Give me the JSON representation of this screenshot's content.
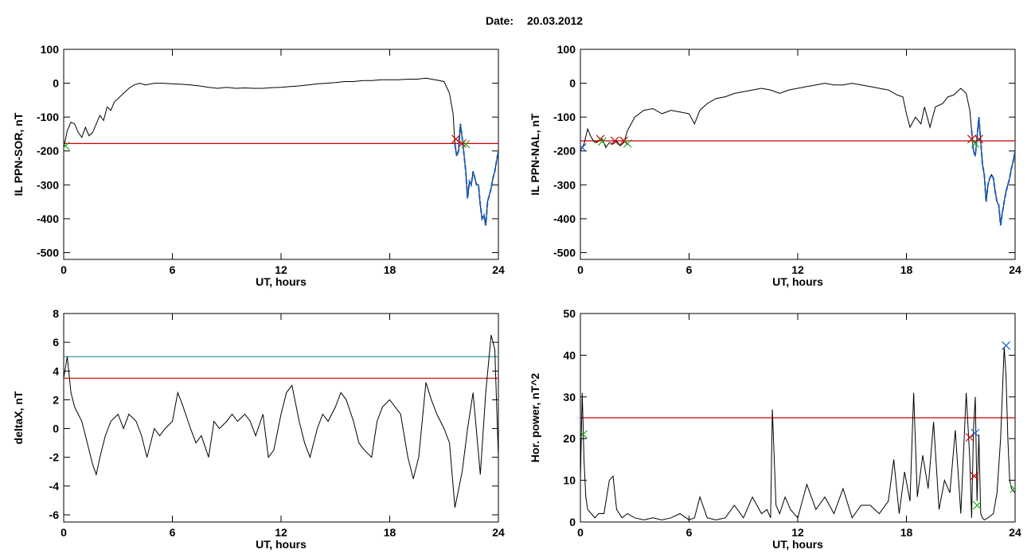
{
  "header": {
    "date_label": "Date:",
    "date_value": "20.03.2012"
  },
  "colors": {
    "signal": "#000000",
    "threshold_red": "#cc0000",
    "threshold_teal": "#1a8a9a",
    "disturbed_blue": "#1560c8",
    "marker_green": "#22aa22",
    "marker_blue": "#1560c8"
  },
  "chart_data": [
    {
      "type": "line",
      "ylabel": "IL PPN-SOR, nT",
      "xlabel": "UT, hours",
      "xlim": [
        0,
        24
      ],
      "ylim": [
        -520,
        100
      ],
      "xticks": [
        "0",
        "6",
        "12",
        "18",
        "24"
      ],
      "yticks": [
        "100",
        "0",
        "-100",
        "-200",
        "-300",
        "-400",
        "-500"
      ],
      "series": [
        {
          "x": [
            0,
            0.2,
            0.4,
            0.6,
            0.8,
            1.0,
            1.2,
            1.4,
            1.6,
            1.8,
            2.0,
            2.2,
            2.4,
            2.6,
            2.8,
            3.0,
            3.3,
            3.6,
            3.9,
            4.2,
            4.5,
            5.0,
            5.5,
            6.0,
            6.5,
            7.0,
            7.5,
            8.0,
            8.5,
            9.0,
            9.5,
            10.0,
            10.5,
            11.0,
            11.5,
            12.0,
            12.5,
            13.0,
            13.5,
            14.0,
            14.5,
            15.0,
            15.5,
            16.0,
            16.5,
            17.0,
            17.5,
            18.0,
            18.5,
            19.0,
            19.5,
            20.0,
            20.5,
            21.0,
            21.3,
            21.5,
            21.6,
            21.7,
            21.8,
            21.9,
            22.0,
            22.1,
            22.2,
            22.3,
            22.4,
            22.5,
            22.6,
            22.7,
            22.8,
            22.9,
            23.0,
            23.1,
            23.2,
            23.3,
            23.4,
            23.5,
            23.6,
            23.7,
            23.8,
            23.9,
            24.0
          ],
          "y": [
            -190,
            -140,
            -115,
            -120,
            -145,
            -160,
            -130,
            -155,
            -145,
            -120,
            -95,
            -110,
            -70,
            -80,
            -55,
            -45,
            -30,
            -15,
            -5,
            0,
            -5,
            0,
            0,
            -2,
            -3,
            -5,
            -8,
            -12,
            -15,
            -12,
            -15,
            -14,
            -15,
            -15,
            -13,
            -12,
            -10,
            -8,
            -5,
            -2,
            0,
            2,
            5,
            5,
            8,
            8,
            10,
            10,
            10,
            12,
            12,
            15,
            10,
            5,
            -30,
            -90,
            -180,
            -215,
            -200,
            -120,
            -160,
            -210,
            -260,
            -340,
            -290,
            -300,
            -260,
            -280,
            -300,
            -300,
            -360,
            -400,
            -390,
            -420,
            -350,
            -330,
            -310,
            -280,
            -260,
            -230,
            -200
          ]
        }
      ],
      "disturbed_from_x": 21.6,
      "thresholds": [
        {
          "y": -178,
          "color": "red"
        }
      ],
      "markers": [
        {
          "x": 21.65,
          "y": -165,
          "symbol": "x",
          "color": "red"
        },
        {
          "x": 22.0,
          "y": -178,
          "symbol": "x",
          "color": "red"
        },
        {
          "x": 22.2,
          "y": -180,
          "symbol": "x",
          "color": "green"
        },
        {
          "x": 0.1,
          "y": -185,
          "symbol": "x",
          "color": "green"
        }
      ]
    },
    {
      "type": "line",
      "ylabel": "IL PPN-NAL, nT",
      "xlabel": "UT, hours",
      "xlim": [
        0,
        24
      ],
      "ylim": [
        -520,
        100
      ],
      "xticks": [
        "0",
        "6",
        "12",
        "18",
        "24"
      ],
      "yticks": [
        "100",
        "0",
        "-100",
        "-200",
        "-300",
        "-400",
        "-500"
      ],
      "series": [
        {
          "x": [
            0,
            0.2,
            0.4,
            0.6,
            0.8,
            1.0,
            1.2,
            1.4,
            1.6,
            1.8,
            2.0,
            2.2,
            2.4,
            2.6,
            2.8,
            3.0,
            3.5,
            4.0,
            4.5,
            5.0,
            5.5,
            6.0,
            6.3,
            6.6,
            7.0,
            7.5,
            8.0,
            8.5,
            9.0,
            9.5,
            10.0,
            10.5,
            11.0,
            11.5,
            12.0,
            12.5,
            13.0,
            13.5,
            14.0,
            14.5,
            15.0,
            15.5,
            16.0,
            16.5,
            17.0,
            17.5,
            17.8,
            18.0,
            18.2,
            18.5,
            18.8,
            19.0,
            19.3,
            19.6,
            20.0,
            20.3,
            20.6,
            21.0,
            21.3,
            21.5,
            21.6,
            21.7,
            21.8,
            21.9,
            22.0,
            22.1,
            22.2,
            22.3,
            22.4,
            22.5,
            22.6,
            22.7,
            22.8,
            22.9,
            23.0,
            23.1,
            23.2,
            23.3,
            23.4,
            23.5,
            23.6,
            23.7,
            23.8,
            23.9,
            24.0
          ],
          "y": [
            -200,
            -180,
            -135,
            -160,
            -175,
            -170,
            -165,
            -190,
            -175,
            -180,
            -170,
            -185,
            -175,
            -140,
            -120,
            -100,
            -80,
            -75,
            -90,
            -80,
            -85,
            -90,
            -120,
            -80,
            -60,
            -45,
            -40,
            -30,
            -25,
            -20,
            -15,
            -20,
            -30,
            -20,
            -15,
            -10,
            -5,
            0,
            -5,
            -5,
            0,
            -5,
            -10,
            -15,
            -20,
            -35,
            -40,
            -90,
            -130,
            -100,
            -120,
            -70,
            -130,
            -70,
            -60,
            -40,
            -35,
            -15,
            -30,
            -80,
            -140,
            -200,
            -215,
            -160,
            -100,
            -170,
            -240,
            -270,
            -350,
            -300,
            -280,
            -270,
            -280,
            -320,
            -350,
            -360,
            -420,
            -380,
            -350,
            -320,
            -300,
            -280,
            -250,
            -230,
            -200
          ]
        }
      ],
      "disturbed_from_x": 21.6,
      "thresholds": [
        {
          "y": -170,
          "color": "red"
        }
      ],
      "markers": [
        {
          "x": 1.1,
          "y": -165,
          "symbol": "x",
          "color": "red"
        },
        {
          "x": 1.9,
          "y": -170,
          "symbol": "x",
          "color": "red"
        },
        {
          "x": 2.4,
          "y": -170,
          "symbol": "x",
          "color": "red"
        },
        {
          "x": 1.2,
          "y": -172,
          "symbol": "x",
          "color": "green"
        },
        {
          "x": 2.6,
          "y": -178,
          "symbol": "x",
          "color": "green"
        },
        {
          "x": 21.6,
          "y": -165,
          "symbol": "x",
          "color": "red"
        },
        {
          "x": 22.0,
          "y": -165,
          "symbol": "x",
          "color": "red"
        },
        {
          "x": 21.8,
          "y": -178,
          "symbol": "x",
          "color": "green"
        },
        {
          "x": 0.1,
          "y": -190,
          "symbol": "x",
          "color": "blue"
        }
      ]
    },
    {
      "type": "line",
      "ylabel": "deltaX, nT",
      "xlabel": "UT, hours",
      "xlim": [
        0,
        24
      ],
      "ylim": [
        -6.5,
        8
      ],
      "xticks": [
        "0",
        "6",
        "12",
        "18",
        "24"
      ],
      "yticks": [
        "8",
        "6",
        "4",
        "2",
        "0",
        "-2",
        "-4",
        "-6"
      ],
      "series": [
        {
          "x": [
            0,
            0.2,
            0.4,
            0.6,
            0.8,
            1.0,
            1.3,
            1.6,
            1.8,
            2.0,
            2.3,
            2.6,
            3.0,
            3.3,
            3.6,
            4.0,
            4.3,
            4.6,
            5.0,
            5.3,
            5.6,
            6.0,
            6.3,
            6.6,
            7.0,
            7.3,
            7.6,
            8.0,
            8.3,
            8.6,
            9.0,
            9.3,
            9.6,
            10.0,
            10.3,
            10.6,
            11.0,
            11.3,
            11.6,
            12.0,
            12.3,
            12.6,
            13.0,
            13.3,
            13.6,
            14.0,
            14.3,
            14.6,
            15.0,
            15.3,
            15.6,
            16.0,
            16.3,
            16.6,
            17.0,
            17.3,
            17.6,
            18.0,
            18.3,
            18.6,
            19.0,
            19.3,
            19.6,
            20.0,
            20.3,
            20.6,
            21.0,
            21.3,
            21.6,
            22.0,
            22.3,
            22.6,
            23.0,
            23.3,
            23.6,
            23.8,
            24.0
          ],
          "y": [
            3.5,
            5.0,
            2.5,
            1.5,
            1.0,
            0.5,
            -1.0,
            -2.5,
            -3.2,
            -2.0,
            -0.5,
            0.5,
            1.0,
            0.0,
            1.0,
            0.5,
            -0.5,
            -2.0,
            0.0,
            -0.5,
            0.0,
            0.5,
            2.5,
            1.5,
            0.0,
            -1.0,
            -0.5,
            -2.0,
            0.5,
            0.0,
            0.5,
            1.0,
            0.5,
            1.0,
            0.5,
            -0.5,
            1.0,
            -2.0,
            -1.5,
            1.0,
            2.5,
            3.0,
            0.5,
            -1.0,
            -2.0,
            0.0,
            1.0,
            0.5,
            1.5,
            2.5,
            2.0,
            0.5,
            -1.0,
            -1.5,
            -2.0,
            0.5,
            1.5,
            2.0,
            1.5,
            1.0,
            -2.0,
            -3.5,
            -2.0,
            3.2,
            2.0,
            1.0,
            0.0,
            -1.0,
            -5.5,
            -3.0,
            0.0,
            2.5,
            -3.2,
            2.5,
            6.5,
            5.5,
            -2.0
          ]
        }
      ],
      "thresholds": [
        {
          "y": 5.0,
          "color": "teal"
        },
        {
          "y": 3.5,
          "color": "red"
        }
      ],
      "markers": []
    },
    {
      "type": "line",
      "ylabel": "Hor. power, nT^2",
      "xlabel": "UT, hours",
      "xlim": [
        0,
        24
      ],
      "ylim": [
        0,
        50
      ],
      "xticks": [
        "0",
        "6",
        "12",
        "18",
        "24"
      ],
      "yticks": [
        "50",
        "40",
        "30",
        "20",
        "10",
        "0"
      ],
      "series": [
        {
          "x": [
            0,
            0.1,
            0.2,
            0.3,
            0.4,
            0.6,
            0.8,
            1.0,
            1.3,
            1.6,
            1.8,
            2.0,
            2.3,
            2.6,
            3.0,
            3.5,
            4.0,
            4.5,
            5.0,
            5.5,
            6.0,
            6.3,
            6.6,
            7.0,
            7.5,
            8.0,
            8.5,
            9.0,
            9.5,
            10.0,
            10.3,
            10.5,
            10.6,
            10.8,
            11.0,
            11.3,
            11.6,
            12.0,
            12.5,
            13.0,
            13.5,
            14.0,
            14.5,
            15.0,
            15.5,
            16.0,
            16.5,
            17.0,
            17.3,
            17.6,
            17.9,
            18.2,
            18.4,
            18.6,
            18.9,
            19.2,
            19.5,
            19.8,
            20.1,
            20.4,
            20.7,
            21.0,
            21.3,
            21.5,
            21.6,
            21.7,
            21.8,
            21.9,
            22.0,
            22.1,
            22.2,
            22.3,
            22.5,
            22.8,
            23.0,
            23.2,
            23.4,
            23.5,
            23.6,
            23.7,
            23.8,
            24.0
          ],
          "y": [
            10,
            31,
            15,
            6,
            3,
            2,
            1,
            2,
            2,
            10,
            11,
            3,
            1,
            2,
            1,
            0.5,
            1,
            0.5,
            1,
            2,
            0.5,
            1,
            6,
            1,
            0.5,
            1,
            4,
            1,
            6,
            2,
            3,
            1,
            27,
            4,
            2,
            6,
            3,
            1,
            9,
            3,
            6,
            2,
            8,
            1,
            4,
            4,
            2,
            5,
            15,
            2,
            12,
            5,
            31,
            6,
            16,
            8,
            24,
            3,
            10,
            7,
            22,
            2,
            31,
            15,
            1,
            22,
            30,
            5,
            21,
            2,
            1,
            0.5,
            1,
            2,
            7,
            20,
            42,
            35,
            20,
            10,
            8,
            7
          ]
        }
      ],
      "thresholds": [
        {
          "y": 25,
          "color": "red"
        }
      ],
      "markers": [
        {
          "x": 0.15,
          "y": 21,
          "symbol": "x",
          "color": "green"
        },
        {
          "x": 21.5,
          "y": 20.3,
          "symbol": "x",
          "color": "red"
        },
        {
          "x": 21.8,
          "y": 21.3,
          "symbol": "x",
          "color": "blue"
        },
        {
          "x": 21.75,
          "y": 11,
          "symbol": "x",
          "color": "red"
        },
        {
          "x": 21.9,
          "y": 4,
          "symbol": "x",
          "color": "green"
        },
        {
          "x": 23.5,
          "y": 42.3,
          "symbol": "x",
          "color": "blue"
        },
        {
          "x": 23.95,
          "y": 8,
          "symbol": "x",
          "color": "green"
        }
      ]
    }
  ]
}
